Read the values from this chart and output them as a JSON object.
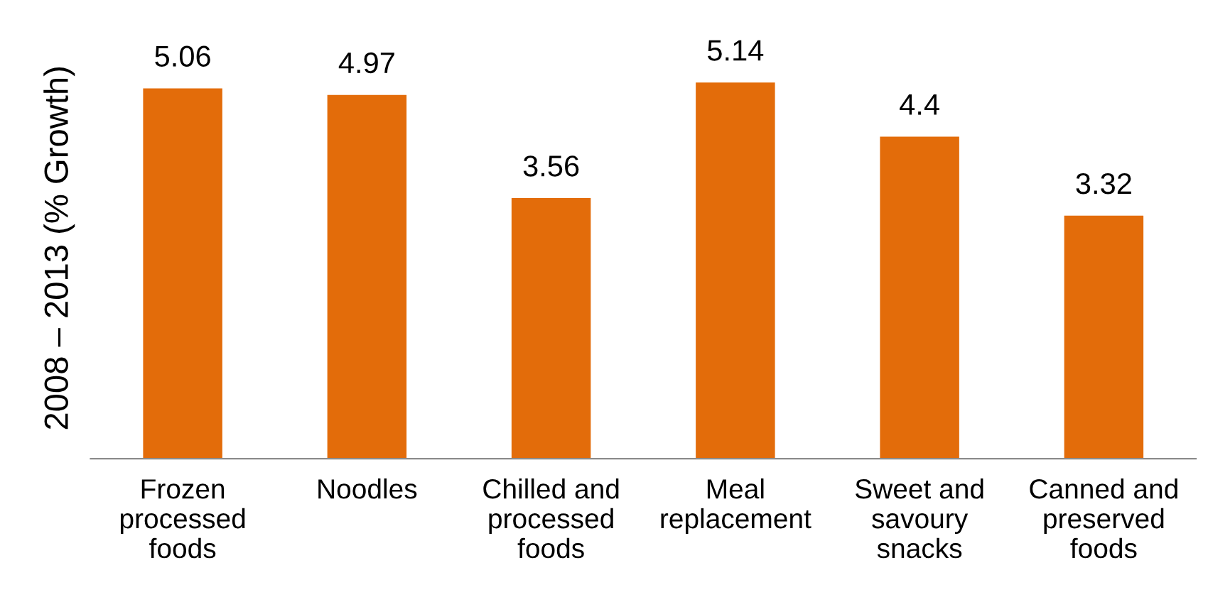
{
  "chart_data": {
    "type": "bar",
    "ylabel": "2008 – 2013 (% Growth)",
    "categories": [
      "Frozen\nprocessed\nfoods",
      "Noodles",
      "Chilled and\nprocessed\nfoods",
      "Meal\nreplacement",
      "Sweet and\nsavoury\nsnacks",
      "Canned and\npreserved\nfoods"
    ],
    "values": [
      5.06,
      4.97,
      3.56,
      5.14,
      4.4,
      3.32
    ],
    "color": "#e36c0a",
    "data_labels": true,
    "grid": false,
    "legend": false
  }
}
